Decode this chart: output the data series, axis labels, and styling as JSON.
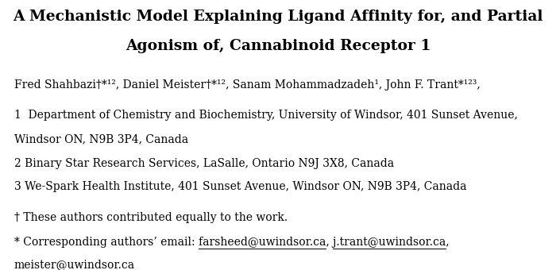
{
  "title_line1": "A Mechanistic Model Explaining Ligand Affinity for, and Partial",
  "title_line2": "Agonism of, Cannabinoid Receptor 1",
  "authors_line": "Fred Shahbazi†*1,2, Daniel Meister†*1,2, Sanam Mohammadzadeh1, John F. Trant*1,2,3,",
  "affil1_line1": "1  Department of Chemistry and Biochemistry, University of Windsor, 401 Sunset Avenue,",
  "affil1_line2": "Windsor ON, N9B 3P4, Canada",
  "affil2": "2 Binary Star Research Services, LaSalle, Ontario N9J 3X8, Canada",
  "affil3": "3 We-Spark Health Institute, 401 Sunset Avenue, Windsor ON, N9B 3P4, Canada",
  "note_dagger": "† These authors contributed equally to the work.",
  "note_star_prefix": "* Corresponding authors’ email: ",
  "email1": "farsheed@uwindsor.ca",
  "sep1": ", ",
  "email2": "j.trant@uwindsor.ca",
  "sep2": ",",
  "email3": "meister@uwindsor.ca",
  "bg_color": "#ffffff",
  "text_color": "#000000",
  "title_fontsize": 13.5,
  "body_fontsize": 10.0,
  "figsize": [
    7.0,
    3.4
  ],
  "dpi": 100
}
